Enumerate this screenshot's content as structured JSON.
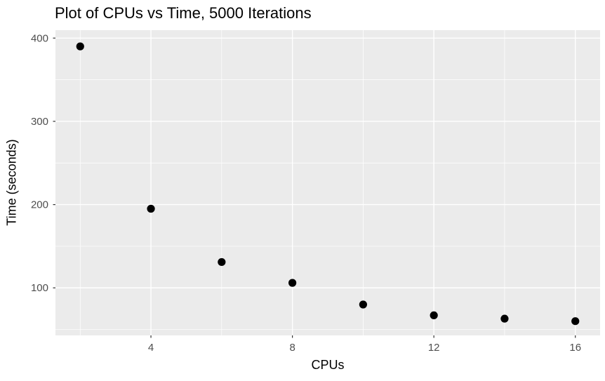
{
  "chart_data": {
    "type": "scatter",
    "title": "Plot of CPUs vs Time, 5000 Iterations",
    "xlabel": "CPUs",
    "ylabel": "Time (seconds)",
    "x": [
      2,
      4,
      6,
      8,
      10,
      12,
      14,
      16
    ],
    "y": [
      390,
      195,
      131,
      106,
      80,
      67,
      63,
      60
    ],
    "xlim": [
      1.3,
      16.7
    ],
    "ylim": [
      42.9,
      409.5
    ],
    "xticks": [
      4,
      8,
      12,
      16
    ],
    "yticks": [
      100,
      200,
      300,
      400
    ],
    "xticks_minor": [
      2,
      6,
      10,
      14
    ],
    "yticks_minor": [
      50,
      150,
      250,
      350
    ],
    "grid": true,
    "legend": "none",
    "style": {
      "panel_bg": "#EBEBEB",
      "grid_color": "#FFFFFF",
      "major_grid_width": 1.4,
      "minor_grid_width": 0.7,
      "point_color": "#000000",
      "point_radius": 5.6,
      "tick_color": "#333333",
      "tick_length": 3.5,
      "tick_label_color": "#4D4D4D",
      "tick_label_size": 15,
      "title_color": "#000000"
    }
  }
}
